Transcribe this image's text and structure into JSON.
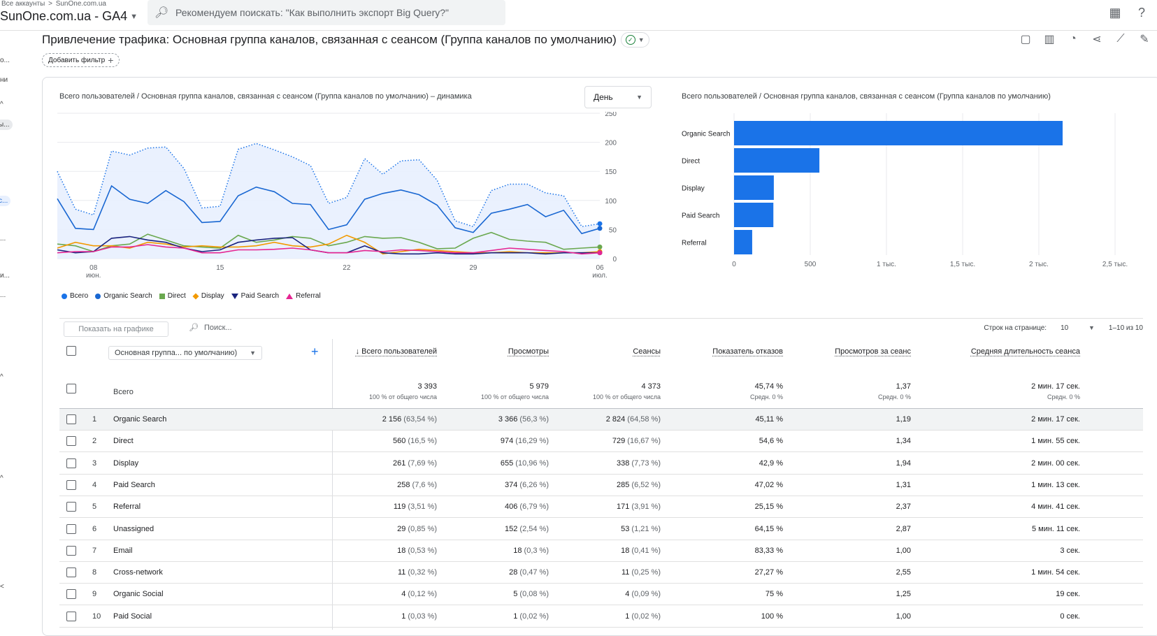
{
  "header": {
    "breadcrumb_root": "Все аккаунты",
    "breadcrumb_sep": ">",
    "breadcrumb_account": "SunOne.com.ua",
    "property": "SunOne.com.ua - GA4",
    "search_placeholder": "Рекомендуем поискать: \"Как выполнить экспорт Big Query?\""
  },
  "leftrail": [
    "о...",
    "ни",
    "^",
    "ы...",
    "с...",
    "...",
    "и...",
    "...",
    "^",
    "^",
    "<"
  ],
  "report": {
    "title": "Привлечение трафика: Основная группа каналов, связанная с сеансом (Группа каналов по умолчанию)",
    "add_filter": "Добавить фильтр"
  },
  "line_chart": {
    "title": "Всего пользователей / Основная группа каналов, связанная с сеансом (Группа каналов по умолчанию) – динамика",
    "granularity": "День"
  },
  "bar_chart_title": "Всего пользователей / Основная группа каналов, связанная с сеансом (Группа каналов по умолчанию)",
  "chart_data": [
    {
      "type": "line",
      "y_ticks": [
        "250",
        "200",
        "150",
        "100",
        "50",
        "0"
      ],
      "ylim": [
        0,
        250
      ],
      "x_ticks": [
        {
          "label": "08",
          "sub": "июн.",
          "index": 2
        },
        {
          "label": "15",
          "sub": "",
          "index": 9
        },
        {
          "label": "22",
          "sub": "",
          "index": 16
        },
        {
          "label": "29",
          "sub": "",
          "index": 23
        },
        {
          "label": "06",
          "sub": "июл.",
          "index": 30
        }
      ],
      "x": [
        1,
        2,
        3,
        4,
        5,
        6,
        7,
        8,
        9,
        10,
        11,
        12,
        13,
        14,
        15,
        16,
        17,
        18,
        19,
        20,
        21,
        22,
        23,
        24,
        25,
        26,
        27,
        28,
        29,
        30,
        31
      ],
      "series": [
        {
          "name": "Всего",
          "color": "#1a73e8",
          "dotted": true,
          "fill": true,
          "values": [
            150,
            85,
            75,
            185,
            178,
            190,
            192,
            155,
            87,
            90,
            188,
            198,
            187,
            175,
            160,
            95,
            105,
            172,
            145,
            168,
            170,
            135,
            65,
            55,
            117,
            128,
            128,
            113,
            108,
            55,
            60
          ]
        },
        {
          "name": "Organic Search",
          "color": "#1967d2",
          "values": [
            103,
            52,
            50,
            125,
            102,
            95,
            117,
            98,
            62,
            64,
            108,
            123,
            115,
            95,
            93,
            50,
            58,
            102,
            112,
            118,
            110,
            92,
            53,
            45,
            78,
            85,
            93,
            72,
            83,
            43,
            52
          ]
        },
        {
          "name": "Direct",
          "color": "#6aa84f",
          "values": [
            25,
            22,
            12,
            22,
            25,
            42,
            32,
            22,
            20,
            18,
            40,
            28,
            32,
            38,
            35,
            22,
            28,
            38,
            35,
            36,
            28,
            17,
            18,
            35,
            45,
            33,
            30,
            28,
            16,
            18,
            20
          ]
        },
        {
          "name": "Display",
          "color": "#f29900",
          "values": [
            18,
            28,
            22,
            22,
            18,
            28,
            25,
            20,
            22,
            20,
            20,
            22,
            28,
            22,
            20,
            25,
            40,
            28,
            8,
            12,
            16,
            14,
            12,
            10,
            10,
            12,
            10,
            10,
            10,
            10,
            12
          ]
        },
        {
          "name": "Paid Search",
          "color": "#1a237e",
          "values": [
            15,
            10,
            12,
            35,
            38,
            32,
            28,
            18,
            12,
            15,
            28,
            32,
            35,
            36,
            15,
            10,
            10,
            22,
            10,
            8,
            8,
            10,
            8,
            8,
            10,
            10,
            10,
            8,
            10,
            10,
            10
          ]
        },
        {
          "name": "Referral",
          "color": "#e52592",
          "values": [
            10,
            12,
            12,
            20,
            20,
            24,
            20,
            18,
            10,
            10,
            15,
            15,
            16,
            18,
            15,
            10,
            10,
            14,
            12,
            15,
            14,
            12,
            10,
            10,
            14,
            18,
            16,
            14,
            12,
            8,
            10
          ]
        }
      ]
    },
    {
      "type": "bar",
      "orientation": "horizontal",
      "categories": [
        "Organic Search",
        "Direct",
        "Display",
        "Paid Search",
        "Referral"
      ],
      "values": [
        2156,
        560,
        261,
        258,
        119
      ],
      "xlim": [
        0,
        2500
      ],
      "x_ticks": [
        {
          "v": 0,
          "label": "0"
        },
        {
          "v": 500,
          "label": "500"
        },
        {
          "v": 1000,
          "label": "1 тыс."
        },
        {
          "v": 1500,
          "label": "1,5 тыс."
        },
        {
          "v": 2000,
          "label": "2 тыс."
        },
        {
          "v": 2500,
          "label": "2,5 тыс."
        }
      ],
      "color": "#1a73e8"
    }
  ],
  "table_tools": {
    "plot_button": "Показать на графике",
    "search_placeholder": "Поиск...",
    "rows_per_page_label": "Строк на странице:",
    "rows_per_page": "10",
    "range": "1–10 из 10"
  },
  "table": {
    "dimension": "Основная группа... по умолчанию)",
    "total_label": "Всего",
    "columns": [
      {
        "label": "Всего пользователей",
        "sorted": true
      },
      {
        "label": "Просмотры"
      },
      {
        "label": "Сеансы"
      },
      {
        "label": "Показатель отказов"
      },
      {
        "label": "Просмотров за сеанс"
      },
      {
        "label": "Средняя длительность сеанса"
      }
    ],
    "totals": [
      {
        "v": "3 393",
        "s": "100 % от общего числа"
      },
      {
        "v": "5 979",
        "s": "100 % от общего числа"
      },
      {
        "v": "4 373",
        "s": "100 % от общего числа"
      },
      {
        "v": "45,74 %",
        "s": "Средн. 0 %"
      },
      {
        "v": "1,37",
        "s": "Средн. 0 %"
      },
      {
        "v": "2 мин. 17 сек.",
        "s": "Средн. 0 %"
      }
    ],
    "rows": [
      {
        "n": "1",
        "name": "Organic Search",
        "cells": [
          [
            "2 156",
            "(63,54 %)"
          ],
          [
            "3 366",
            "(56,3 %)"
          ],
          [
            "2 824",
            "(64,58 %)"
          ],
          [
            "45,11 %",
            ""
          ],
          [
            "1,19",
            ""
          ],
          [
            "2 мин. 17 сек.",
            ""
          ]
        ]
      },
      {
        "n": "2",
        "name": "Direct",
        "cells": [
          [
            "560",
            "(16,5 %)"
          ],
          [
            "974",
            "(16,29 %)"
          ],
          [
            "729",
            "(16,67 %)"
          ],
          [
            "54,6 %",
            ""
          ],
          [
            "1,34",
            ""
          ],
          [
            "1 мин. 55 сек.",
            ""
          ]
        ]
      },
      {
        "n": "3",
        "name": "Display",
        "cells": [
          [
            "261",
            "(7,69 %)"
          ],
          [
            "655",
            "(10,96 %)"
          ],
          [
            "338",
            "(7,73 %)"
          ],
          [
            "42,9 %",
            ""
          ],
          [
            "1,94",
            ""
          ],
          [
            "2 мин. 00 сек.",
            ""
          ]
        ]
      },
      {
        "n": "4",
        "name": "Paid Search",
        "cells": [
          [
            "258",
            "(7,6 %)"
          ],
          [
            "374",
            "(6,26 %)"
          ],
          [
            "285",
            "(6,52 %)"
          ],
          [
            "47,02 %",
            ""
          ],
          [
            "1,31",
            ""
          ],
          [
            "1 мин. 13 сек.",
            ""
          ]
        ]
      },
      {
        "n": "5",
        "name": "Referral",
        "cells": [
          [
            "119",
            "(3,51 %)"
          ],
          [
            "406",
            "(6,79 %)"
          ],
          [
            "171",
            "(3,91 %)"
          ],
          [
            "25,15 %",
            ""
          ],
          [
            "2,37",
            ""
          ],
          [
            "4 мин. 41 сек.",
            ""
          ]
        ]
      },
      {
        "n": "6",
        "name": "Unassigned",
        "cells": [
          [
            "29",
            "(0,85 %)"
          ],
          [
            "152",
            "(2,54 %)"
          ],
          [
            "53",
            "(1,21 %)"
          ],
          [
            "64,15 %",
            ""
          ],
          [
            "2,87",
            ""
          ],
          [
            "5 мин. 11 сек.",
            ""
          ]
        ]
      },
      {
        "n": "7",
        "name": "Email",
        "cells": [
          [
            "18",
            "(0,53 %)"
          ],
          [
            "18",
            "(0,3 %)"
          ],
          [
            "18",
            "(0,41 %)"
          ],
          [
            "83,33 %",
            ""
          ],
          [
            "1,00",
            ""
          ],
          [
            "3 сек.",
            ""
          ]
        ]
      },
      {
        "n": "8",
        "name": "Cross-network",
        "cells": [
          [
            "11",
            "(0,32 %)"
          ],
          [
            "28",
            "(0,47 %)"
          ],
          [
            "11",
            "(0,25 %)"
          ],
          [
            "27,27 %",
            ""
          ],
          [
            "2,55",
            ""
          ],
          [
            "1 мин. 54 сек.",
            ""
          ]
        ]
      },
      {
        "n": "9",
        "name": "Organic Social",
        "cells": [
          [
            "4",
            "(0,12 %)"
          ],
          [
            "5",
            "(0,08 %)"
          ],
          [
            "4",
            "(0,09 %)"
          ],
          [
            "75 %",
            ""
          ],
          [
            "1,25",
            ""
          ],
          [
            "19 сек.",
            ""
          ]
        ]
      },
      {
        "n": "10",
        "name": "Paid Social",
        "cells": [
          [
            "1",
            "(0,03 %)"
          ],
          [
            "1",
            "(0,02 %)"
          ],
          [
            "1",
            "(0,02 %)"
          ],
          [
            "100 %",
            ""
          ],
          [
            "1,00",
            ""
          ],
          [
            "0 сек.",
            ""
          ]
        ]
      }
    ]
  }
}
